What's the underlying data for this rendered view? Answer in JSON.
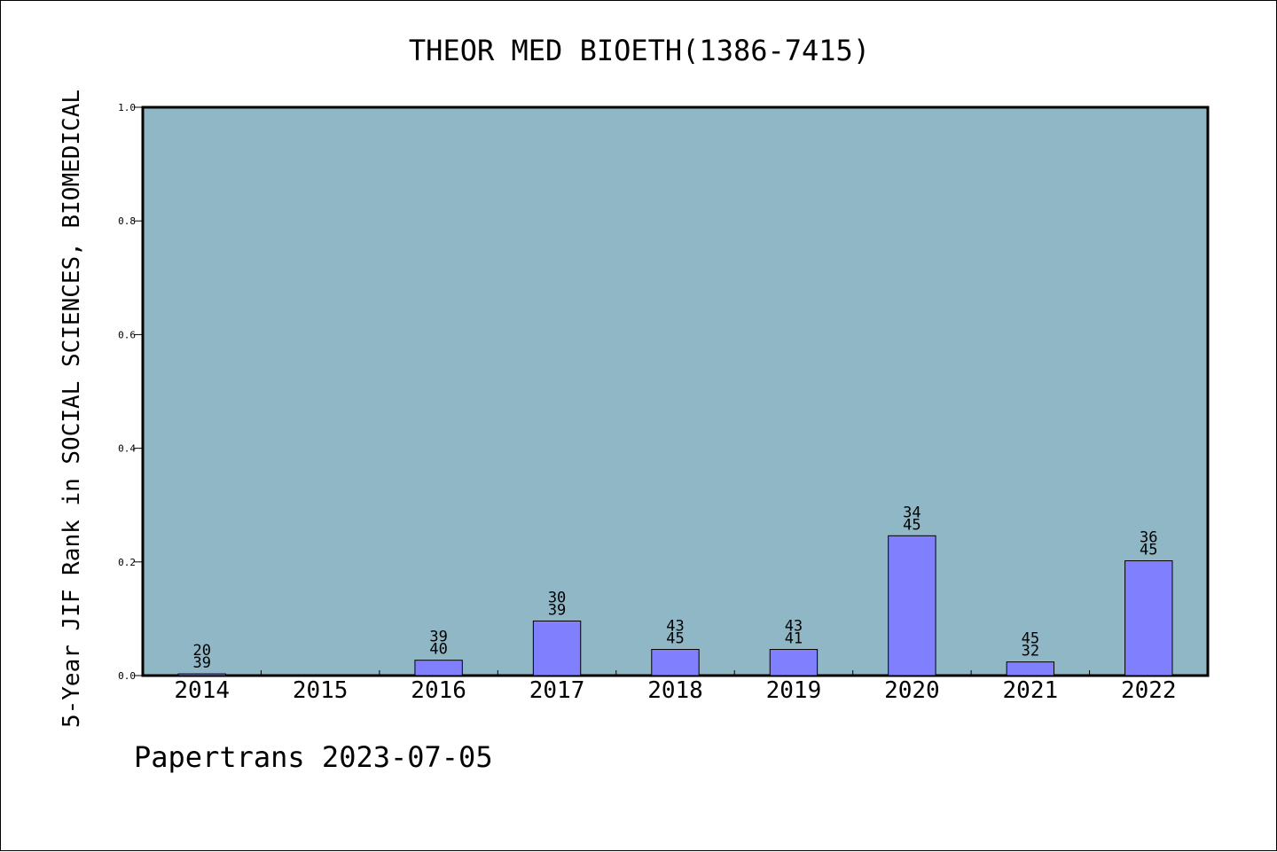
{
  "footer": "Papertrans 2023-07-05",
  "colors": {
    "plot_bg": "#90b7c5",
    "bar_fill": "#8080ff",
    "bar_stroke": "#000000",
    "text": "#000000"
  },
  "chart_data": {
    "type": "bar",
    "title": "THEOR MED BIOETH(1386-7415)",
    "xlabel": "",
    "ylabel": "5-Year JIF Rank in SOCIAL SCIENCES, BIOMEDICAL",
    "categories": [
      "2014",
      "2015",
      "2016",
      "2017",
      "2018",
      "2019",
      "2020",
      "2021",
      "2022"
    ],
    "values": [
      0.003,
      null,
      0.027,
      0.096,
      0.046,
      0.046,
      0.246,
      0.024,
      0.202
    ],
    "rank_labels": [
      [
        "20",
        "39"
      ],
      null,
      [
        "39",
        "40"
      ],
      [
        "30",
        "39"
      ],
      [
        "43",
        "45"
      ],
      [
        "43",
        "41"
      ],
      [
        "34",
        "45"
      ],
      [
        "45",
        "32"
      ],
      [
        "36",
        "45"
      ]
    ],
    "ylim": [
      0,
      1.0
    ],
    "yticks": [
      "0.0",
      "0.2",
      "0.4",
      "0.6",
      "0.8",
      "1.0"
    ],
    "grid": false,
    "legend": "none"
  }
}
